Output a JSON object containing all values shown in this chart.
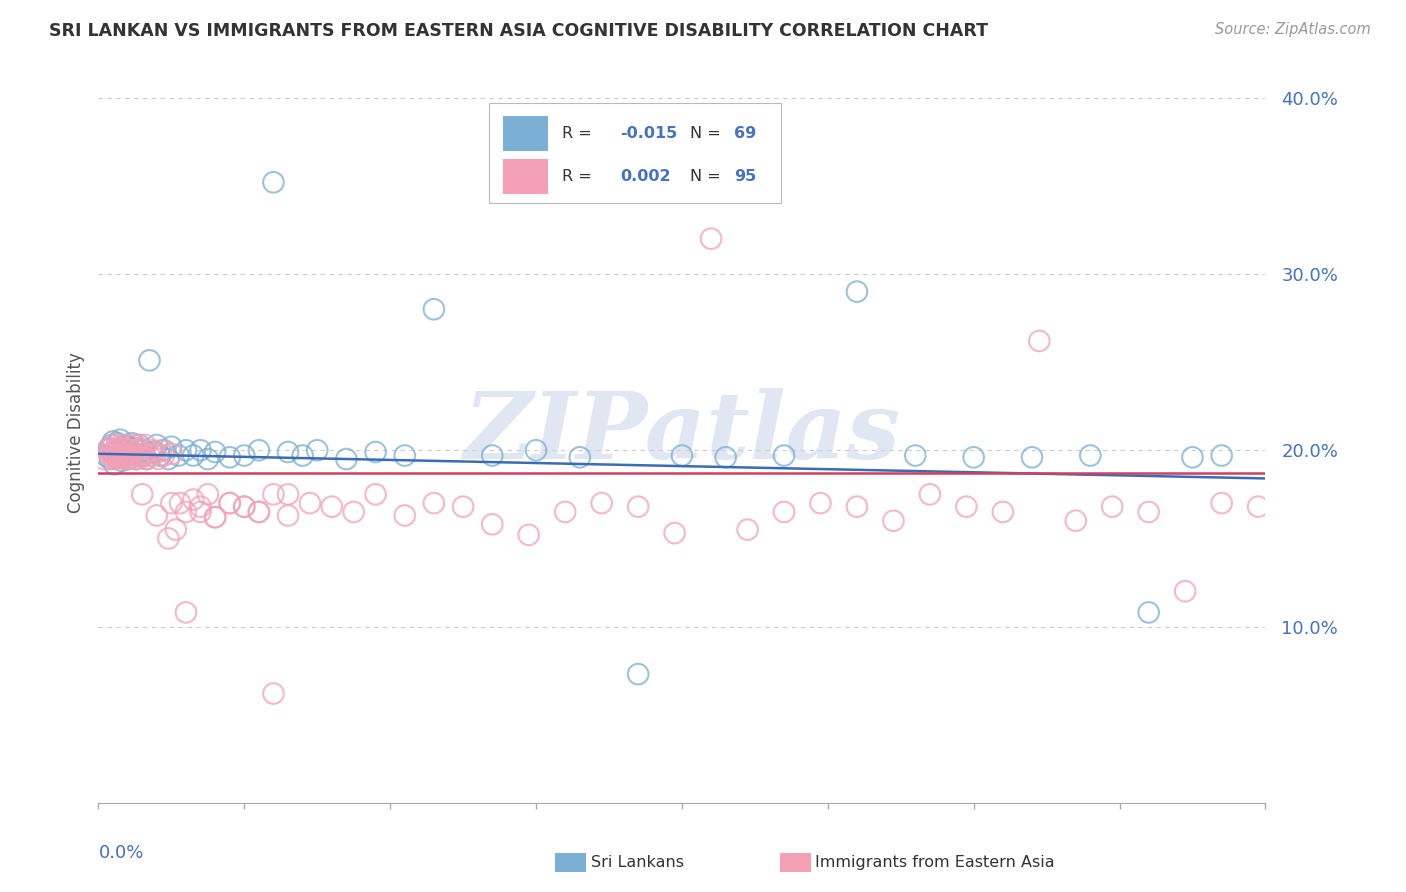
{
  "title": "SRI LANKAN VS IMMIGRANTS FROM EASTERN ASIA COGNITIVE DISABILITY CORRELATION CHART",
  "source": "Source: ZipAtlas.com",
  "ylabel": "Cognitive Disability",
  "xlim": [
    0.0,
    0.8
  ],
  "ylim": [
    0.0,
    0.42
  ],
  "series1_name": "Sri Lankans",
  "series1_color": "#7BAFD4",
  "series1_R": -0.015,
  "series1_N": 69,
  "series1_line_color": "#3B6BB5",
  "series2_name": "Immigrants from Eastern Asia",
  "series2_color": "#F4A0B5",
  "series2_R": 0.002,
  "series2_N": 95,
  "series2_line_color": "#D04060",
  "watermark_text": "ZIPatlas",
  "background_color": "#FFFFFF",
  "grid_color": "#CCCCCC",
  "ytick_color": "#4472C4",
  "title_color": "#333333",
  "source_color": "#999999",
  "ylabel_color": "#555555"
}
